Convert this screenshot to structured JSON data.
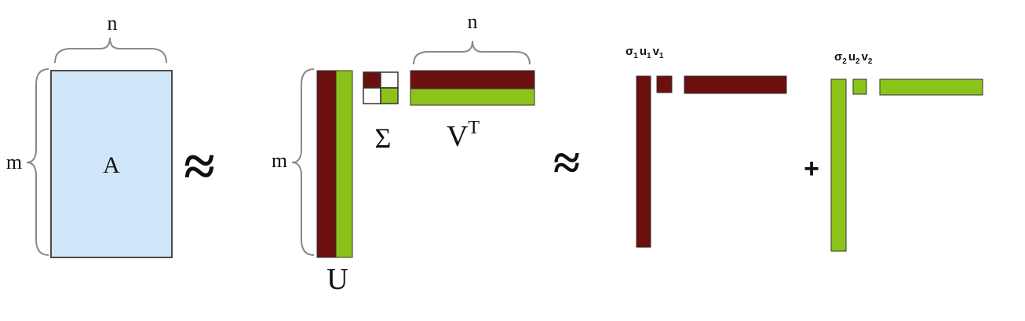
{
  "matrix_a": {
    "label": "A",
    "rows_label": "m",
    "cols_label": "n"
  },
  "approx_symbol": "≈",
  "factorization": {
    "u_label": "U",
    "sigma_label": "Σ",
    "vt_base": "V",
    "vt_superscript": "T",
    "rows_label": "m",
    "cols_label": "n"
  },
  "rank_one_terms": [
    {
      "sigma": "σ",
      "u": "u",
      "v": "v",
      "index": "1"
    },
    {
      "sigma": "σ",
      "u": "u",
      "v": "v",
      "index": "2"
    }
  ],
  "plus_symbol": "+",
  "colors": {
    "matrix_fill": "#cfe6f8",
    "matrix_stroke": "#4a4a4a",
    "component1": "#6b0f0f",
    "component2": "#8cc31a",
    "brace": "#888888"
  }
}
